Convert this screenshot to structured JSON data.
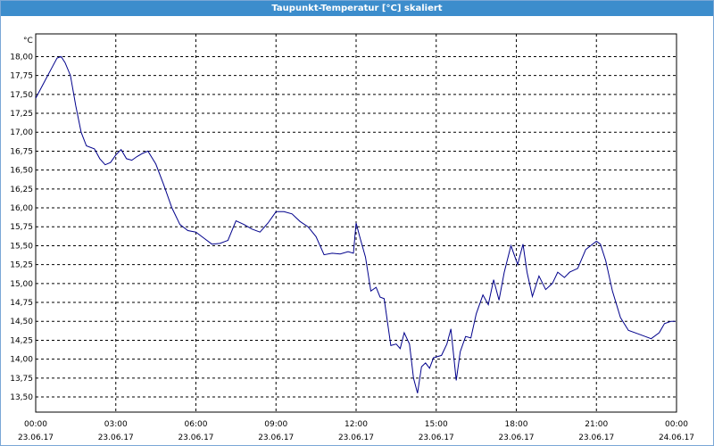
{
  "window": {
    "title": "Taupunkt-Temperatur [°C] skaliert"
  },
  "chart_data": {
    "type": "line",
    "title": "Taupunkt-Temperatur [°C] skaliert",
    "ylabel": "°C",
    "xlabel": "",
    "ylim": [
      13.3,
      18.3
    ],
    "xlim": [
      0,
      24
    ],
    "grid": true,
    "line_color": "#00008b",
    "y_ticks": [
      "13,50",
      "13,75",
      "14,00",
      "14,25",
      "14,50",
      "14,75",
      "15,00",
      "15,25",
      "15,50",
      "15,75",
      "16,00",
      "16,25",
      "16,50",
      "16,75",
      "17,00",
      "17,25",
      "17,50",
      "17,75",
      "18,00"
    ],
    "x_ticks": [
      {
        "time": "00:00",
        "date": "23.06.17"
      },
      {
        "time": "03:00",
        "date": "23.06.17"
      },
      {
        "time": "06:00",
        "date": "23.06.17"
      },
      {
        "time": "09:00",
        "date": "23.06.17"
      },
      {
        "time": "12:00",
        "date": "23.06.17"
      },
      {
        "time": "15:00",
        "date": "23.06.17"
      },
      {
        "time": "18:00",
        "date": "23.06.17"
      },
      {
        "time": "21:00",
        "date": "23.06.17"
      },
      {
        "time": "00:00",
        "date": "24.06.17"
      }
    ],
    "series": [
      {
        "x": [
          0,
          0.3,
          0.6,
          0.8,
          0.95,
          1.1,
          1.3,
          1.5,
          1.7,
          1.9,
          2.2,
          2.4,
          2.6,
          2.8,
          3,
          3.2,
          3.4,
          3.6,
          3.8,
          4,
          4.2,
          4.5,
          4.8,
          5.1,
          5.4,
          5.7,
          6,
          6.3,
          6.6,
          6.9,
          7.2,
          7.5,
          7.8,
          8.1,
          8.4,
          8.7,
          9,
          9.3,
          9.6,
          9.9,
          10.2,
          10.5,
          10.8,
          11.1,
          11.4,
          11.7,
          11.9,
          12,
          12.15,
          12.35,
          12.55,
          12.75,
          12.9,
          13.05,
          13.3,
          13.5,
          13.65,
          13.8,
          14,
          14.15,
          14.3,
          14.45,
          14.6,
          14.75,
          14.9,
          15,
          15.2,
          15.4,
          15.55,
          15.75,
          15.9,
          16.1,
          16.3,
          16.5,
          16.75,
          16.95,
          17.15,
          17.35,
          17.55,
          17.8,
          18.05,
          18.25,
          18.4,
          18.6,
          18.85,
          19.1,
          19.35,
          19.55,
          19.8,
          20,
          20.3,
          20.6,
          21,
          21.15,
          21.35,
          21.6,
          21.9,
          22.2,
          22.6,
          23.05,
          23.35,
          23.55,
          23.8,
          23.95
        ],
        "y": [
          17.45,
          17.65,
          17.85,
          17.98,
          18.0,
          17.92,
          17.75,
          17.35,
          17.0,
          16.82,
          16.78,
          16.65,
          16.57,
          16.6,
          16.7,
          16.77,
          16.65,
          16.63,
          16.68,
          16.72,
          16.75,
          16.58,
          16.3,
          16.0,
          15.78,
          15.7,
          15.68,
          15.6,
          15.52,
          15.53,
          15.57,
          15.83,
          15.78,
          15.72,
          15.68,
          15.8,
          15.95,
          15.95,
          15.92,
          15.82,
          15.75,
          15.62,
          15.38,
          15.4,
          15.39,
          15.42,
          15.4,
          15.8,
          15.6,
          15.35,
          14.9,
          14.95,
          14.82,
          14.8,
          14.18,
          14.2,
          14.14,
          14.35,
          14.2,
          13.75,
          13.55,
          13.9,
          13.95,
          13.88,
          14.02,
          14.03,
          14.05,
          14.2,
          14.4,
          13.72,
          14.1,
          14.3,
          14.28,
          14.6,
          14.85,
          14.72,
          15.05,
          14.78,
          15.15,
          15.5,
          15.25,
          15.52,
          15.15,
          14.83,
          15.1,
          14.92,
          15.0,
          15.15,
          15.08,
          15.15,
          15.2,
          15.45,
          15.56,
          15.52,
          15.3,
          14.9,
          14.55,
          14.38,
          14.33,
          14.27,
          14.35,
          14.47,
          14.5,
          14.5
        ]
      }
    ]
  }
}
